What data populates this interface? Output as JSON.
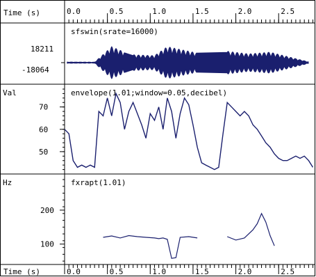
{
  "app": {
    "time_label_top": "Time (s)",
    "time_label_bottom": "Time (s)"
  },
  "axis": {
    "ticks": [
      "0.0",
      "0.5",
      "1.0",
      "1.5",
      "2.0",
      "2.5"
    ]
  },
  "panels": [
    {
      "id": "waveform",
      "title": "sfswin(srate=16000)",
      "unit_label": "",
      "y_labels": [
        "18211",
        "-18064"
      ]
    },
    {
      "id": "envelope",
      "title": "envelope(1.01;window=0.05,decibel)",
      "unit_label": "Val",
      "y_labels": [
        "70",
        "60",
        "50"
      ]
    },
    {
      "id": "pitch",
      "title": "fxrapt(1.01)",
      "unit_label": "Hz",
      "y_labels": [
        "200",
        "100"
      ]
    }
  ],
  "colors": {
    "trace": "#1a1f6e",
    "frame": "#000000",
    "background": "#ffffff"
  },
  "chart_data": [
    {
      "type": "line",
      "title": "sfswin(srate=16000)",
      "xlabel": "Time (s)",
      "ylim": [
        -18064,
        18211
      ],
      "segments": [
        {
          "x": [
            0.03,
            0.35,
            0.55,
            0.7
          ],
          "peak": [
            800,
            600,
            18211,
            12000
          ]
        },
        {
          "x": [
            0.8,
            1.05,
            1.2,
            1.55
          ],
          "peak": [
            9000,
            8000,
            18211,
            11000
          ]
        },
        {
          "x": [
            1.9,
            2.15,
            2.4,
            2.85
          ],
          "peak": [
            13000,
            10000,
            12000,
            900
          ]
        }
      ]
    },
    {
      "type": "line",
      "title": "envelope(1.01;window=0.05,decibel)",
      "xlabel": "Time (s)",
      "ylabel": "Val",
      "ylim": [
        40,
        78
      ],
      "x": [
        0.0,
        0.05,
        0.1,
        0.15,
        0.2,
        0.25,
        0.3,
        0.35,
        0.4,
        0.45,
        0.5,
        0.55,
        0.6,
        0.65,
        0.7,
        0.75,
        0.8,
        0.85,
        0.9,
        0.95,
        1.0,
        1.05,
        1.1,
        1.15,
        1.2,
        1.25,
        1.3,
        1.35,
        1.4,
        1.45,
        1.5,
        1.55,
        1.6,
        1.65,
        1.7,
        1.75,
        1.8,
        1.85,
        1.9,
        1.95,
        2.0,
        2.05,
        2.1,
        2.15,
        2.2,
        2.25,
        2.3,
        2.35,
        2.4,
        2.45,
        2.5,
        2.55,
        2.6,
        2.65,
        2.7,
        2.75,
        2.8,
        2.85,
        2.9
      ],
      "y": [
        60,
        58,
        46,
        43,
        44,
        43,
        44,
        43,
        68,
        66,
        74,
        66,
        76,
        72,
        60,
        68,
        72,
        67,
        62,
        56,
        67,
        64,
        70,
        60,
        74,
        68,
        56,
        67,
        74,
        71,
        62,
        52,
        45,
        44,
        43,
        42,
        43,
        58,
        72,
        70,
        68,
        66,
        68,
        66,
        62,
        60,
        57,
        54,
        52,
        49,
        47,
        46,
        46,
        47,
        48,
        47,
        48,
        46,
        43
      ]
    },
    {
      "type": "line",
      "title": "fxrapt(1.01)",
      "xlabel": "Time (s)",
      "ylabel": "Hz",
      "ylim": [
        40,
        290
      ],
      "series": [
        {
          "x": [
            0.45,
            0.55,
            0.65,
            0.75,
            0.85,
            0.95,
            1.05,
            1.1,
            1.15,
            1.2,
            1.25,
            1.3,
            1.35,
            1.45,
            1.55
          ],
          "y": [
            120,
            124,
            118,
            125,
            122,
            120,
            118,
            116,
            118,
            114,
            58,
            60,
            120,
            122,
            118
          ]
        },
        {
          "x": [
            1.9,
            2.0,
            2.1,
            2.2,
            2.25,
            2.3,
            2.35,
            2.4,
            2.45
          ],
          "y": [
            122,
            112,
            118,
            142,
            160,
            190,
            165,
            125,
            95
          ]
        }
      ]
    }
  ]
}
